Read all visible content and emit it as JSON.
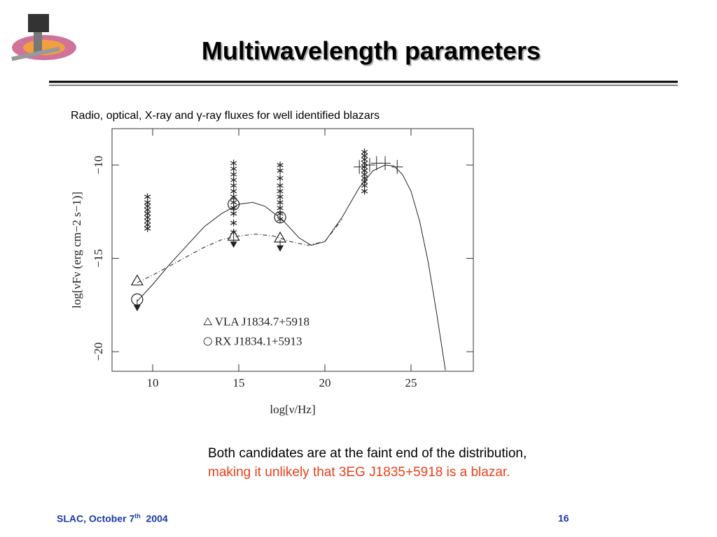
{
  "header": {
    "title": "Multiwavelength parameters"
  },
  "caption": "Radio, optical, X-ray and γ-ray fluxes for well identified blazars",
  "chart_data": {
    "type": "scatter",
    "xlabel": "log[ν/Hz]",
    "ylabel": "log[νFν (erg cm−2 s−1)]",
    "xlim": [
      7.64,
      28.62
    ],
    "ylim": [
      -21.05,
      -8.05
    ],
    "xticks": [
      10,
      15,
      20,
      25
    ],
    "yticks": [
      {
        "value": -20,
        "label": "−20"
      },
      {
        "value": -15,
        "label": "−15"
      },
      {
        "value": -10,
        "label": "−10"
      }
    ],
    "legend": "lower center",
    "series": [
      {
        "marker": "asterisk",
        "color": "#222",
        "x": [
          9.7,
          9.7,
          9.7,
          9.7,
          9.7,
          9.7,
          9.7,
          9.7,
          9.7,
          14.7,
          14.7,
          14.7,
          14.7,
          14.7,
          14.7,
          14.7,
          14.7,
          14.7,
          14.7,
          14.7,
          14.7,
          17.4,
          17.4,
          17.4,
          17.4,
          17.4,
          17.4,
          17.4,
          17.4,
          17.4,
          17.4,
          22.3,
          22.3,
          22.3,
          22.3,
          22.3,
          22.3,
          22.3,
          22.3,
          22.3,
          22.3,
          22.3
        ],
        "y": [
          -11.7,
          -12.0,
          -12.2,
          -12.4,
          -12.6,
          -12.8,
          -13.0,
          -13.2,
          -13.4,
          -9.9,
          -10.2,
          -10.5,
          -10.8,
          -11.1,
          -11.4,
          -11.7,
          -12.0,
          -12.3,
          -12.6,
          -13.1,
          -13.6,
          -10.0,
          -10.3,
          -10.7,
          -11.1,
          -11.4,
          -11.7,
          -12.0,
          -12.3,
          -12.6,
          -12.9,
          -9.3,
          -9.5,
          -9.7,
          -9.9,
          -10.1,
          -10.3,
          -10.5,
          -10.7,
          -10.9,
          -11.1,
          -11.4
        ]
      },
      {
        "marker": "plus",
        "color": "#222",
        "x": [
          22.0,
          22.6,
          23.0,
          23.5,
          24.2
        ],
        "y": [
          -10.1,
          -10.0,
          -9.9,
          -9.9,
          -10.1
        ]
      },
      {
        "name": "VLA  J1834.7+5918",
        "marker": "triangle",
        "color": "#222",
        "x": [
          9.1,
          14.7,
          17.4
        ],
        "y": [
          -16.2,
          -13.8,
          -13.9
        ]
      },
      {
        "name": "RX  J1834.1+5913",
        "marker": "circle",
        "color": "#222",
        "x": [
          9.1,
          14.7,
          17.4
        ],
        "y": [
          -17.2,
          -12.1,
          -12.8
        ]
      },
      {
        "marker": "arrow",
        "color": "#222",
        "x": [
          9.1,
          14.7,
          17.4
        ],
        "y": [
          -17.5,
          -14.1,
          -14.3
        ]
      },
      {
        "marker": "line",
        "color": "#222",
        "x": [
          9.1,
          10,
          11,
          12,
          13,
          14,
          15,
          15.8,
          16.5,
          17.5,
          18.5,
          19.2,
          20,
          21,
          22,
          22.8,
          23.5,
          24,
          24.5,
          25,
          25.5,
          26,
          26.5,
          27
        ],
        "y": [
          -17.3,
          -16.4,
          -15.3,
          -14.3,
          -13.3,
          -12.6,
          -12.1,
          -12.0,
          -12.2,
          -12.9,
          -13.9,
          -14.3,
          -14.1,
          -12.8,
          -11.2,
          -10.3,
          -10.0,
          -10.05,
          -10.5,
          -11.4,
          -13.0,
          -15.2,
          -18.0,
          -21.0
        ]
      },
      {
        "marker": "dashdot",
        "color": "#222",
        "x": [
          9.1,
          10,
          11,
          12,
          13,
          14,
          15,
          16,
          17,
          18,
          19,
          20,
          21
        ],
        "y": [
          -16.3,
          -15.9,
          -15.4,
          -14.9,
          -14.4,
          -14.0,
          -13.8,
          -13.7,
          -13.8,
          -14.1,
          -14.3,
          -14.1,
          -12.9
        ]
      }
    ]
  },
  "text": {
    "line1": "Both candidates are at the faint end of the distribution,",
    "line2": "making it unlikely that 3EG J1835+5918 is a blazar."
  },
  "footer": {
    "left": "SLAC, October 7",
    "sup": "th",
    "year": "2004",
    "page": "16"
  }
}
